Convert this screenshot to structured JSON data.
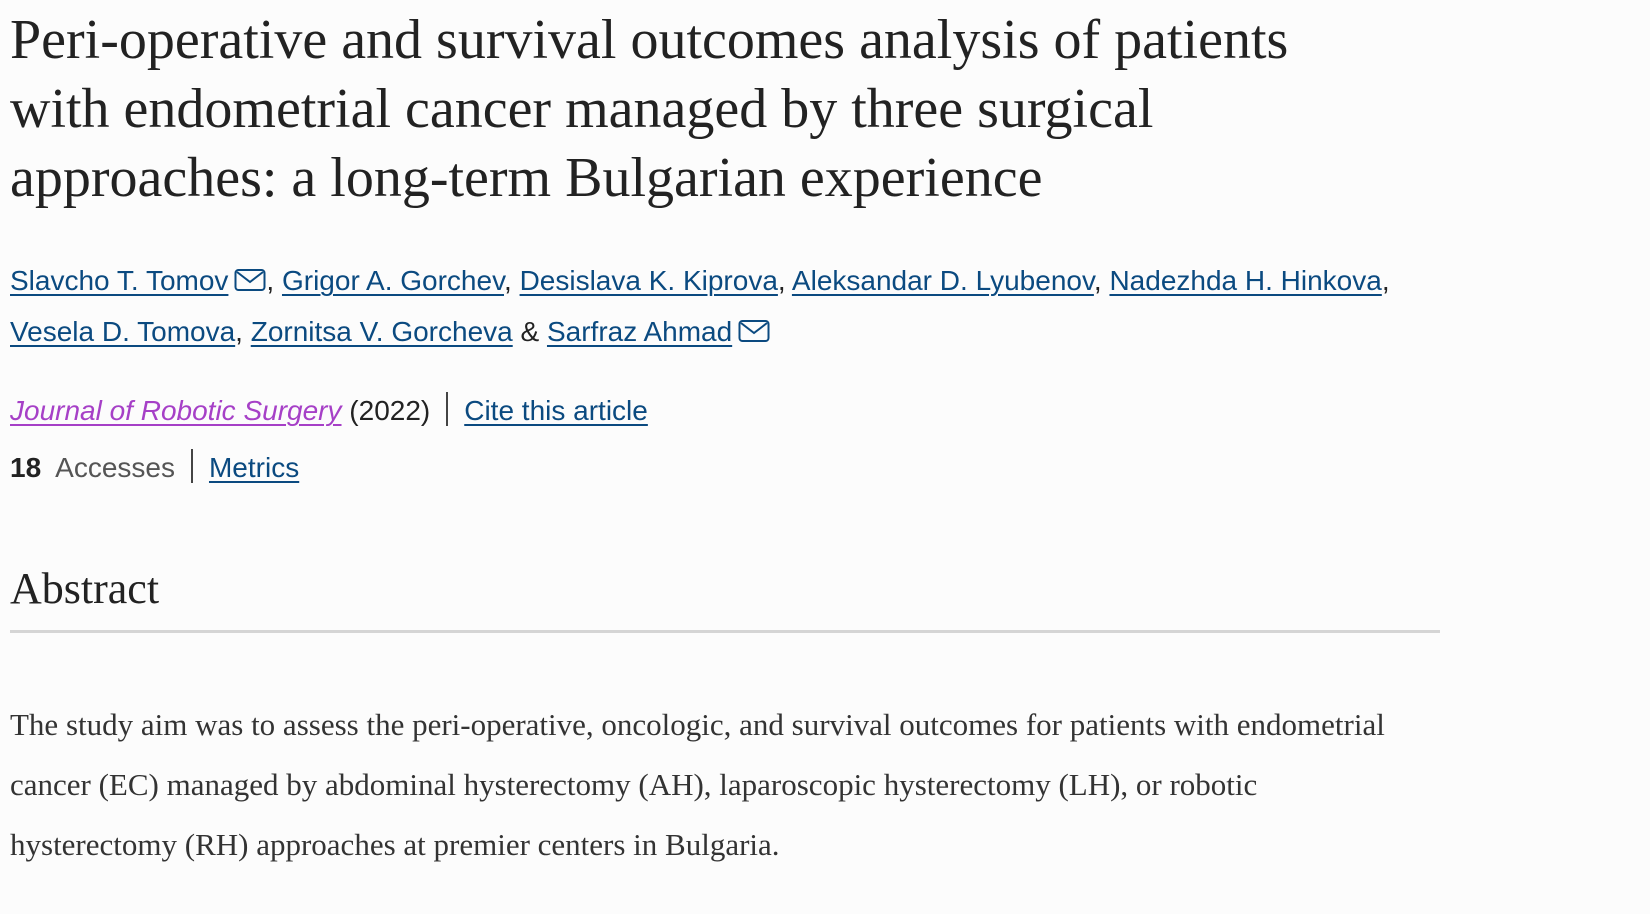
{
  "article": {
    "title": "Peri-operative and survival outcomes analysis of patients with endometrial cancer managed by three surgical approaches: a long-term Bulgarian experience",
    "authors": [
      {
        "name": "Slavcho T. Tomov",
        "sep": ","
      },
      {
        "name": "Grigor A. Gorchev",
        "sep": ","
      },
      {
        "name": "Desislava K. Kiprova",
        "sep": ","
      },
      {
        "name": "Aleksandar D. Lyubenov",
        "sep": ","
      },
      {
        "name": "Nadezhda H. Hinkova",
        "sep": ","
      },
      {
        "name": "Vesela D. Tomova",
        "sep": ","
      },
      {
        "name": "Zornitsa V. Gorcheva",
        "sep": "&"
      },
      {
        "name": "Sarfraz Ahmad"
      }
    ],
    "journal": "Journal of Robotic Surgery",
    "year": "(2022)",
    "cite": "Cite this article",
    "accesses_count": "18",
    "accesses_label": "Accesses",
    "metrics": "Metrics",
    "abstract_heading": "Abstract",
    "abstract_text": "The study aim was to assess the peri-operative, oncologic, and survival outcomes for patients with endometrial cancer (EC) managed by abdominal hysterectomy (AH), laparoscopic hysterectomy (LH), or robotic hysterectomy (RH) approaches at premier centers in Bulgaria."
  }
}
